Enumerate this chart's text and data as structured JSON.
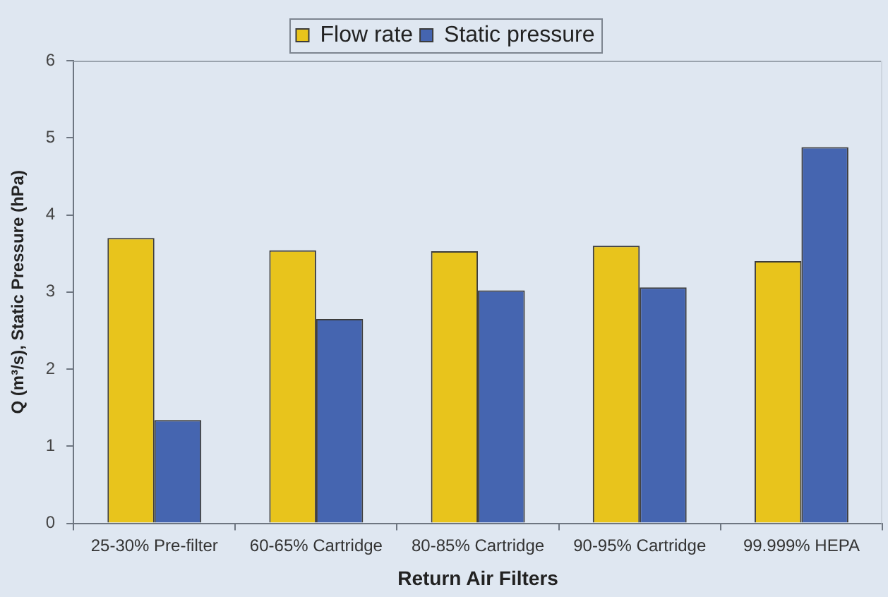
{
  "chart_data": {
    "type": "bar",
    "xlabel": "Return Air Filters",
    "ylabel": "Q (m³/s), Static Pressure (hPa)",
    "categories": [
      "25-30% Pre-filter",
      "60-65% Cartridge",
      "80-85% Cartridge",
      "90-95% Cartridge",
      "99.999% HEPA"
    ],
    "series": [
      {
        "name": "Flow rate",
        "color": "#e8c41c",
        "values": [
          3.7,
          3.54,
          3.53,
          3.6,
          3.4
        ]
      },
      {
        "name": "Static pressure",
        "color": "#4565b0",
        "values": [
          1.34,
          2.65,
          3.02,
          3.06,
          4.88
        ]
      }
    ],
    "ylim": [
      0,
      6
    ],
    "yticks": [
      0,
      1,
      2,
      3,
      4,
      5,
      6
    ],
    "legend": "top"
  }
}
